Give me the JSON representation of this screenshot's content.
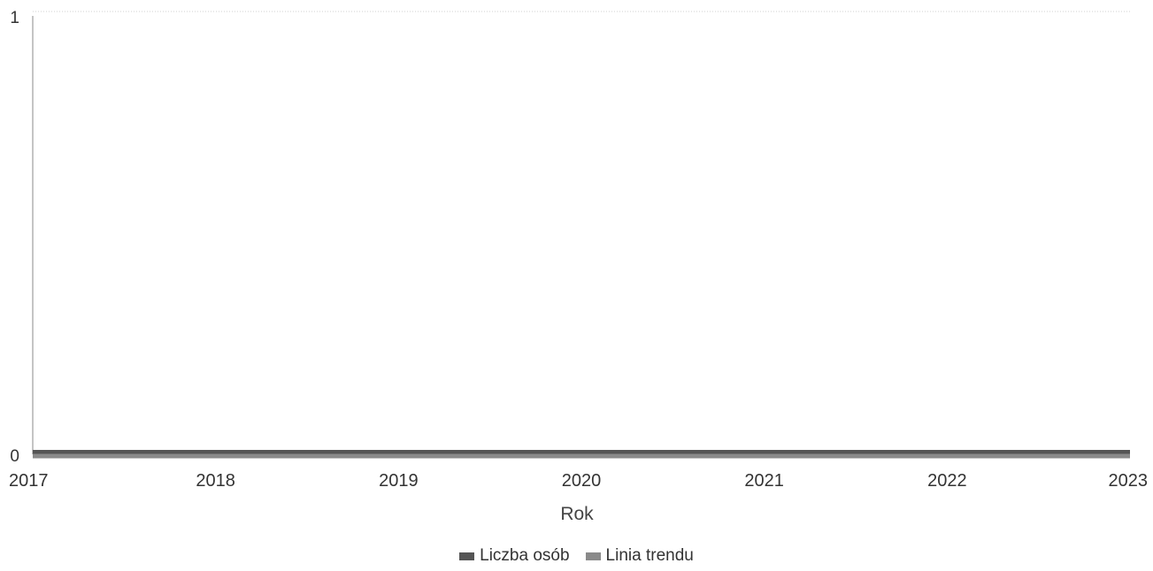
{
  "chart_data": {
    "type": "line",
    "title": "",
    "xlabel": "Rok",
    "ylabel": "",
    "x": [
      2017,
      2018,
      2019,
      2020,
      2021,
      2022,
      2023
    ],
    "x_tick_labels": [
      "2017",
      "2018",
      "2019",
      "2020",
      "2021",
      "2022",
      "2023"
    ],
    "y_tick_labels": [
      "0",
      "1"
    ],
    "ylim": [
      0,
      1
    ],
    "grid": false,
    "legend_position": "bottom-center",
    "series": [
      {
        "name": "Liczba osób",
        "values": [
          0,
          0,
          0,
          0,
          0,
          0,
          0
        ],
        "color": "#555555"
      },
      {
        "name": "Linia trendu",
        "values": [
          0,
          0,
          0,
          0,
          0,
          0,
          0
        ],
        "color": "#8a8a8a"
      }
    ]
  }
}
